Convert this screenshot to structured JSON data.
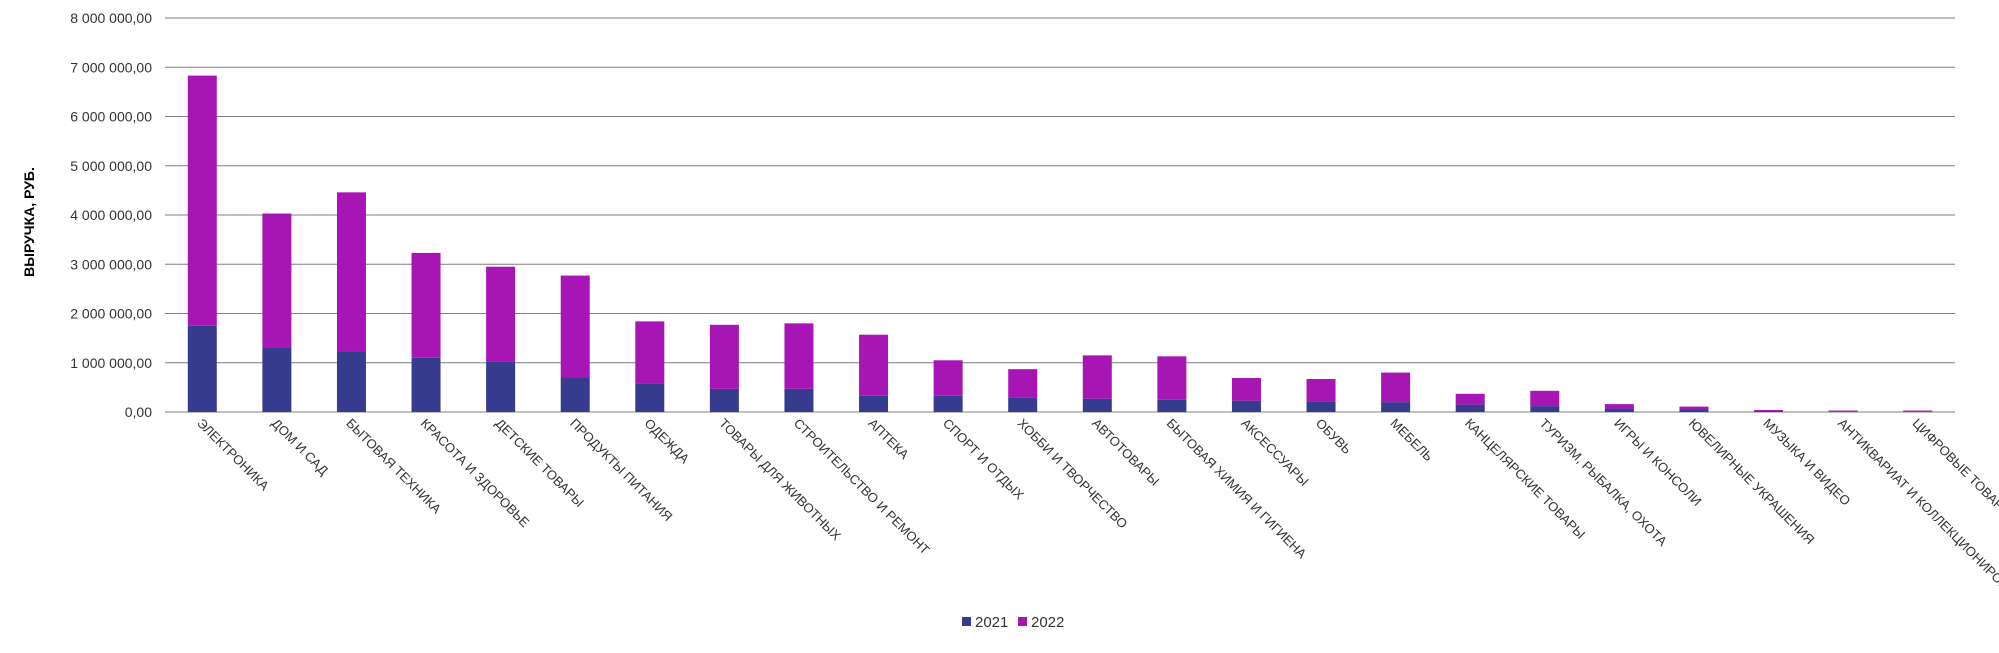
{
  "colors": {
    "series_2021": "#363b8e",
    "series_2022": "#a716b4",
    "grid": "#7f7f7f"
  },
  "chart_data": {
    "type": "bar",
    "stacked": true,
    "xlabel": "",
    "ylabel": "ВЫРУЧКА, РУБ.",
    "ylim": [
      0,
      8000000
    ],
    "ytick_values": [
      0,
      1000000,
      2000000,
      3000000,
      4000000,
      5000000,
      6000000,
      7000000,
      8000000
    ],
    "ytick_labels": [
      "0,00",
      "1 000 000,00",
      "2 000 000,00",
      "3 000 000,00",
      "4 000 000,00",
      "5 000 000,00",
      "6 000 000,00",
      "7 000 000,00",
      "8 000 000,00"
    ],
    "grid": true,
    "legend_position": "bottom",
    "categories": [
      "ЭЛЕКТРОНИКА",
      "ДОМ И САД",
      "БЫТОВАЯ ТЕХНИКА",
      "КРАСОТА И ЗДОРОВЬЕ",
      "ДЕТСКИЕ ТОВАРЫ",
      "ПРОДУКТЫ ПИТАНИЯ",
      "ОДЕЖДА",
      "ТОВАРЫ ДЛЯ ЖИВОТНЫХ",
      "СТРОИТЕЛЬСТВО И РЕМОНТ",
      "АПТЕКА",
      "СПОРТ И ОТДЫХ",
      "ХОББИ И ТВОРЧЕСТВО",
      "АВТОТОВАРЫ",
      "БЫТОВАЯ ХИМИЯ И ГИГИЕНА",
      "АКСЕССУАРЫ",
      "ОБУВЬ",
      "МЕБЕЛЬ",
      "КАНЦЕЛЯРСКИЕ ТОВАРЫ",
      "ТУРИЗМ, РЫБАЛКА, ОХОТА",
      "ИГРЫ И КОНСОЛИ",
      "ЮВЕЛИРНЫЕ УКРАШЕНИЯ",
      "МУЗЫКА И ВИДЕО",
      "АНТИКВАРИАТ И КОЛЛЕКЦИОНИРОВАНИЕ",
      "ЦИФРОВЫЕ ТОВАРЫ"
    ],
    "series": [
      {
        "name": "2021",
        "values": [
          1750000,
          1300000,
          1230000,
          1100000,
          1030000,
          700000,
          570000,
          470000,
          470000,
          330000,
          330000,
          300000,
          270000,
          250000,
          230000,
          220000,
          200000,
          150000,
          120000,
          70000,
          50000,
          20000,
          15000,
          15000
        ]
      },
      {
        "name": "2022",
        "values": [
          5080000,
          2730000,
          3230000,
          2130000,
          1920000,
          2070000,
          1270000,
          1300000,
          1330000,
          1240000,
          720000,
          570000,
          880000,
          880000,
          460000,
          450000,
          600000,
          220000,
          310000,
          90000,
          60000,
          20000,
          15000,
          15000
        ]
      }
    ]
  }
}
